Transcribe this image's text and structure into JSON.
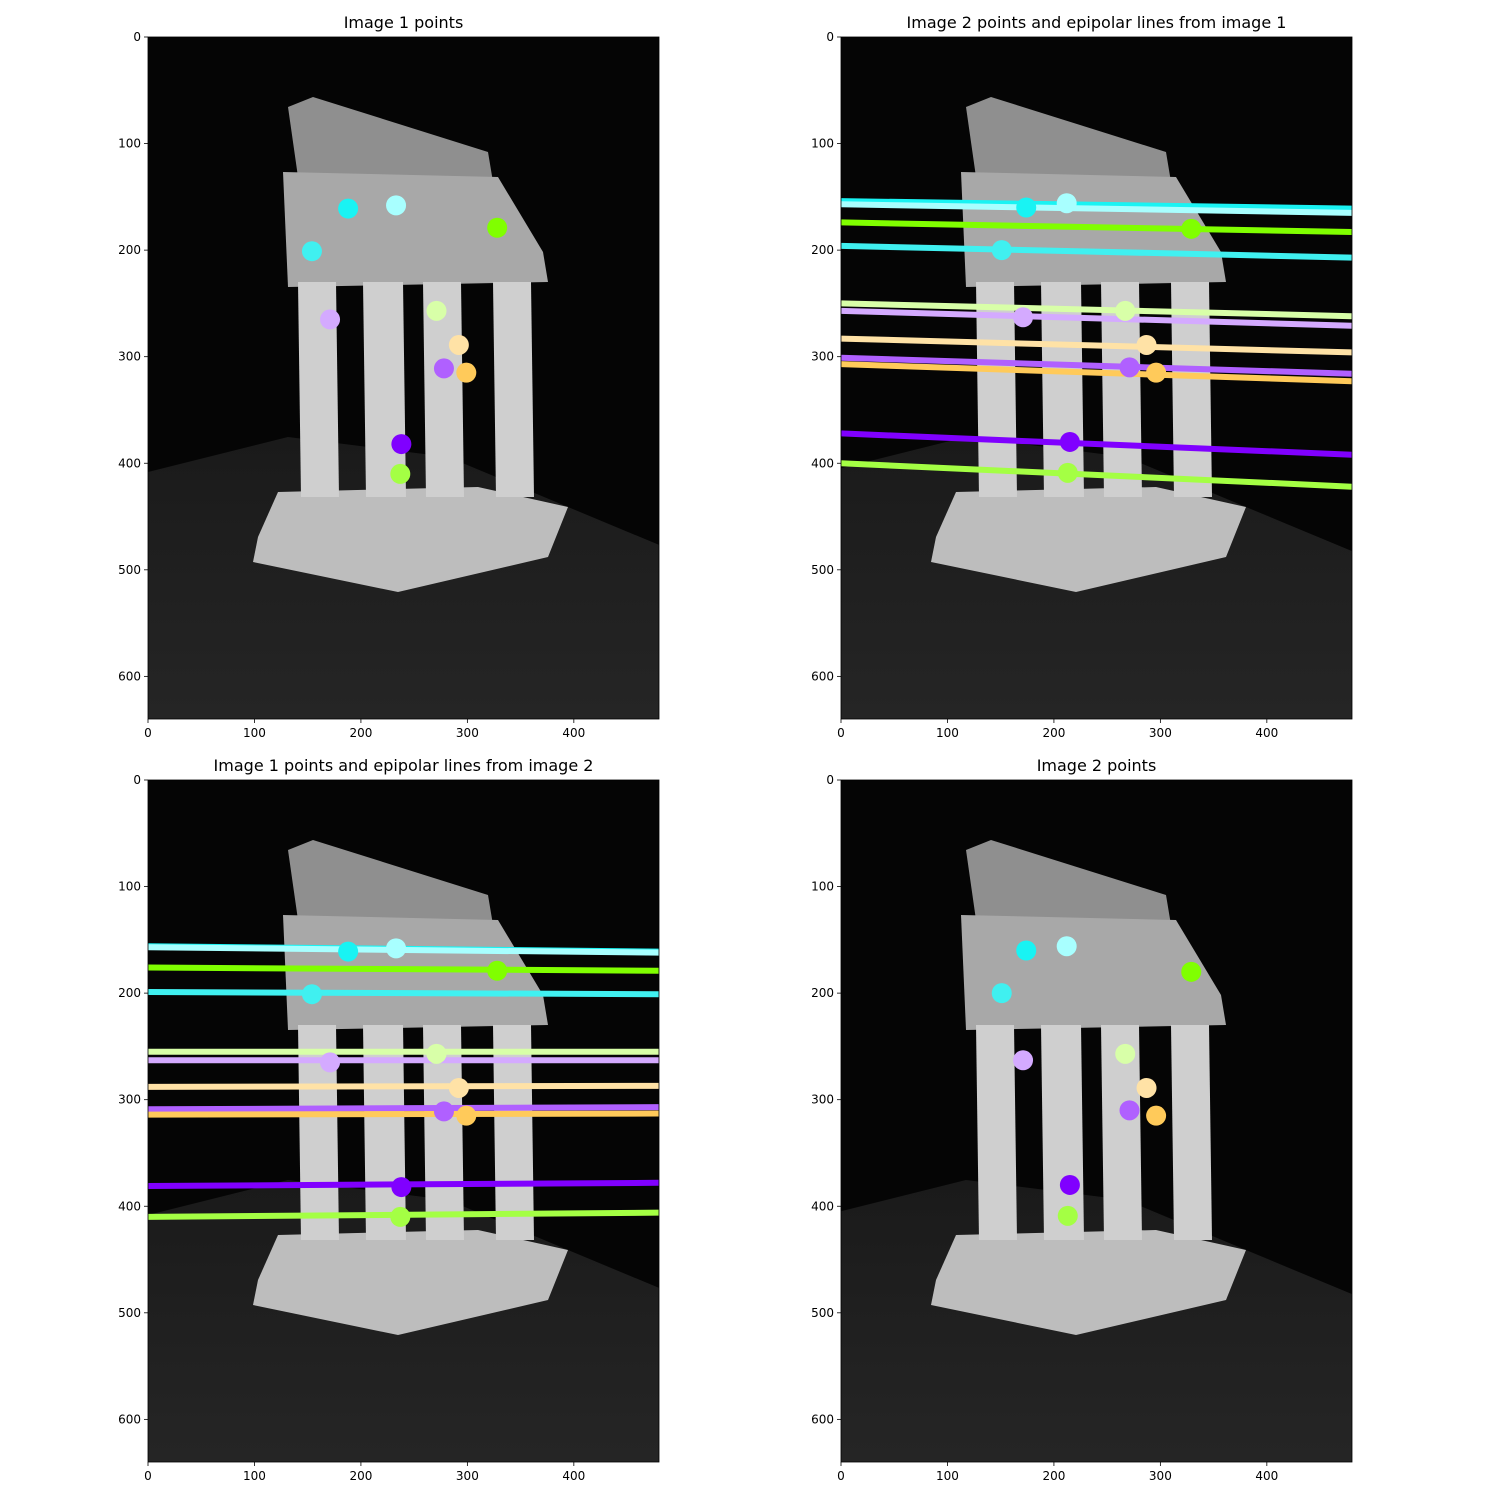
{
  "chart_data": [
    {
      "type": "scatter",
      "title": "Image 1 points",
      "xlim": [
        0,
        480
      ],
      "ylim": [
        640,
        0
      ],
      "xticks": [
        0,
        100,
        200,
        300,
        400
      ],
      "yticks": [
        0,
        100,
        200,
        300,
        400,
        500,
        600
      ],
      "colors": [
        "#19f3f3",
        "#a8ffff",
        "#80ff00",
        "#40f0f0",
        "#d4aaff",
        "#d8ffa8",
        "#ffe2a6",
        "#b060ff",
        "#ffca5a",
        "#8000ff",
        "#a4ff44"
      ],
      "x": [
        188,
        233,
        328,
        154,
        171,
        271,
        292,
        278,
        299,
        238,
        237
      ],
      "y": [
        161,
        158,
        179,
        201,
        265,
        257,
        289,
        311,
        315,
        382,
        410
      ]
    },
    {
      "type": "scatter",
      "title": "Image 2 points and epipolar lines from image 1",
      "xlim": [
        0,
        480
      ],
      "ylim": [
        640,
        0
      ],
      "xticks": [
        0,
        100,
        200,
        300,
        400
      ],
      "yticks": [
        0,
        100,
        200,
        300,
        400,
        500,
        600
      ],
      "colors": [
        "#19f3f3",
        "#a8ffff",
        "#80ff00",
        "#40f0f0",
        "#d4aaff",
        "#d8ffa8",
        "#ffe2a6",
        "#b060ff",
        "#ffca5a",
        "#8000ff",
        "#a4ff44"
      ],
      "x": [
        174,
        212,
        329,
        151,
        171,
        267,
        287,
        271,
        296,
        215,
        213
      ],
      "y": [
        160,
        156,
        180,
        200,
        263,
        257,
        289,
        310,
        315,
        380,
        409
      ],
      "line_x": [
        0,
        480
      ],
      "lines": [
        [
          154,
          161
        ],
        [
          157,
          165
        ],
        [
          174,
          183
        ],
        [
          196,
          207
        ],
        [
          257,
          271
        ],
        [
          250,
          262
        ],
        [
          283,
          296
        ],
        [
          301,
          316
        ],
        [
          307,
          323
        ],
        [
          372,
          392
        ],
        [
          400,
          422
        ]
      ]
    },
    {
      "type": "scatter",
      "title": "Image 1 points and epipolar lines from image 2",
      "xlim": [
        0,
        480
      ],
      "ylim": [
        640,
        0
      ],
      "xticks": [
        0,
        100,
        200,
        300,
        400
      ],
      "yticks": [
        0,
        100,
        200,
        300,
        400,
        500,
        600
      ],
      "colors": [
        "#19f3f3",
        "#a8ffff",
        "#80ff00",
        "#40f0f0",
        "#d4aaff",
        "#d8ffa8",
        "#ffe2a6",
        "#b060ff",
        "#ffca5a",
        "#8000ff",
        "#a4ff44"
      ],
      "x": [
        188,
        233,
        328,
        154,
        171,
        271,
        292,
        278,
        299,
        238,
        237
      ],
      "y": [
        161,
        158,
        179,
        201,
        265,
        257,
        289,
        311,
        315,
        382,
        410
      ],
      "line_x": [
        0,
        480
      ],
      "lines": [
        [
          156,
          161
        ],
        [
          157,
          162
        ],
        [
          176,
          179
        ],
        [
          199,
          201
        ],
        [
          263,
          263
        ],
        [
          255,
          255
        ],
        [
          288,
          287
        ],
        [
          309,
          307
        ],
        [
          314,
          313
        ],
        [
          381,
          378
        ],
        [
          410,
          406
        ]
      ]
    },
    {
      "type": "scatter",
      "title": "Image 2 points",
      "xlim": [
        0,
        480
      ],
      "ylim": [
        640,
        0
      ],
      "xticks": [
        0,
        100,
        200,
        300,
        400
      ],
      "yticks": [
        0,
        100,
        200,
        300,
        400,
        500,
        600
      ],
      "colors": [
        "#19f3f3",
        "#a8ffff",
        "#80ff00",
        "#40f0f0",
        "#d4aaff",
        "#d8ffa8",
        "#ffe2a6",
        "#b060ff",
        "#ffca5a",
        "#8000ff",
        "#a4ff44"
      ],
      "x": [
        174,
        212,
        329,
        151,
        171,
        267,
        287,
        271,
        296,
        215,
        213
      ],
      "y": [
        160,
        156,
        180,
        200,
        263,
        257,
        289,
        310,
        315,
        380,
        409
      ]
    }
  ]
}
